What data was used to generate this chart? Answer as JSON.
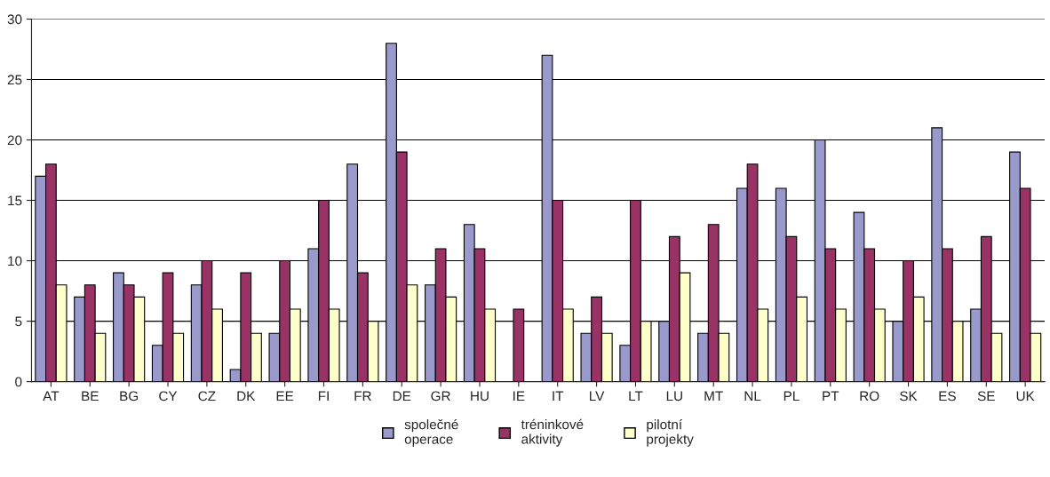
{
  "chart_data": {
    "type": "bar",
    "categories": [
      "AT",
      "BE",
      "BG",
      "CY",
      "CZ",
      "DK",
      "EE",
      "FI",
      "FR",
      "DE",
      "GR",
      "HU",
      "IE",
      "IT",
      "LV",
      "LT",
      "LU",
      "MT",
      "NL",
      "PL",
      "PT",
      "RO",
      "SK",
      "ES",
      "SE",
      "UK"
    ],
    "series": [
      {
        "name": "společné\noperace",
        "color": "#9999cc",
        "values": [
          17,
          7,
          9,
          3,
          8,
          1,
          4,
          11,
          18,
          28,
          8,
          13,
          0,
          27,
          4,
          3,
          5,
          4,
          16,
          16,
          20,
          14,
          5,
          21,
          6,
          19
        ]
      },
      {
        "name": "tréninkové\naktivity",
        "color": "#993366",
        "values": [
          18,
          8,
          8,
          9,
          10,
          9,
          10,
          15,
          9,
          19,
          11,
          11,
          6,
          15,
          7,
          15,
          12,
          13,
          18,
          12,
          11,
          11,
          10,
          11,
          12,
          16
        ]
      },
      {
        "name": "pilotní\nprojekty",
        "color": "#ffffcc",
        "values": [
          8,
          4,
          7,
          4,
          6,
          4,
          6,
          6,
          5,
          8,
          7,
          6,
          0,
          6,
          4,
          5,
          9,
          4,
          6,
          7,
          6,
          6,
          7,
          5,
          4,
          4
        ]
      }
    ],
    "ylim": [
      0,
      30
    ],
    "yticks": [
      0,
      5,
      10,
      15,
      20,
      25,
      30
    ],
    "grid": "y",
    "legend": "bottom"
  }
}
